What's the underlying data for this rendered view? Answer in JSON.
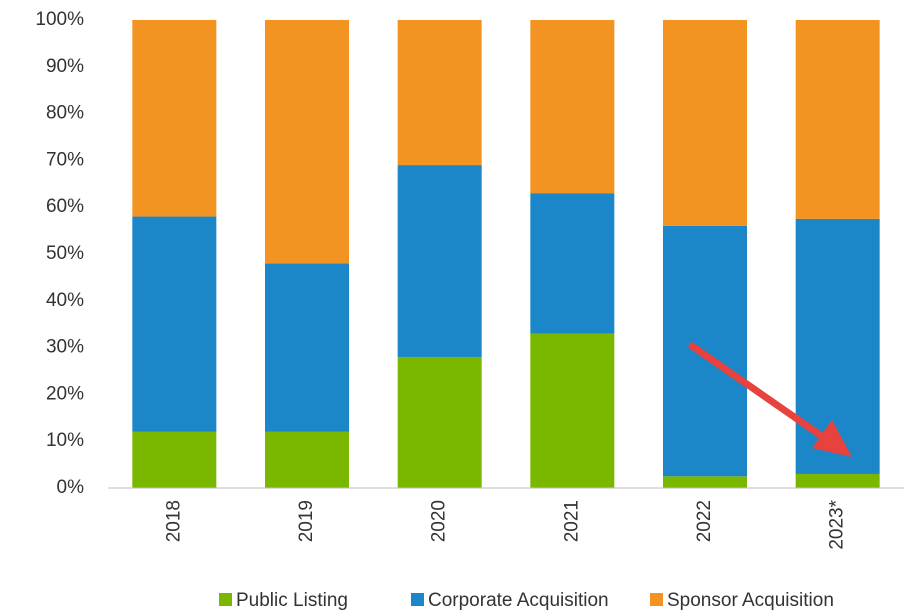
{
  "chart_data": {
    "type": "stacked_bar",
    "categories": [
      "2018",
      "2019",
      "2020",
      "2021",
      "2022",
      "2023*"
    ],
    "series": [
      {
        "name": "Public Listing",
        "color": "#7ab800",
        "values": [
          12,
          12,
          28,
          33,
          2.5,
          3
        ]
      },
      {
        "name": "Corporate Acquisition",
        "color": "#1b87c9",
        "values": [
          46,
          36,
          41,
          30,
          53.5,
          54.5
        ]
      },
      {
        "name": "Sponsor Acquisition",
        "color": "#f39422",
        "values": [
          42,
          52,
          31,
          37,
          44,
          42.5
        ]
      }
    ],
    "ylim": [
      0,
      100
    ],
    "yticks": [
      {
        "value": 0,
        "label": "0%"
      },
      {
        "value": 10,
        "label": "10%"
      },
      {
        "value": 20,
        "label": "20%"
      },
      {
        "value": 30,
        "label": "30%"
      },
      {
        "value": 40,
        "label": "40%"
      },
      {
        "value": 50,
        "label": "50%"
      },
      {
        "value": 60,
        "label": "60%"
      },
      {
        "value": 70,
        "label": "70%"
      },
      {
        "value": 80,
        "label": "80%"
      },
      {
        "value": 90,
        "label": "90%"
      },
      {
        "value": 100,
        "label": "100%"
      }
    ],
    "grid": false,
    "legend": "bottom"
  }
}
